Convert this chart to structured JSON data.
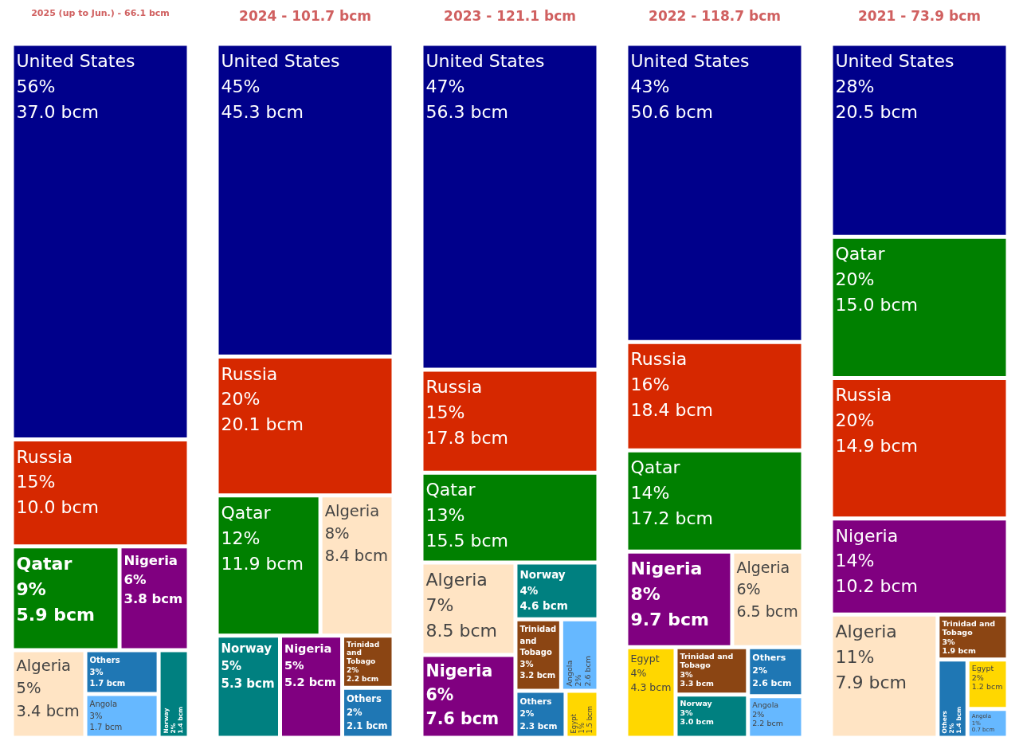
{
  "chart_data": [
    {
      "type": "other",
      "title": "2025 (up to Jun.) - 66.1 bcm",
      "categories": [
        "United States",
        "Russia",
        "Qatar",
        "Nigeria",
        "Algeria",
        "Others",
        "Angola",
        "Norway"
      ],
      "values": [
        37.0,
        10.0,
        5.9,
        3.8,
        3.4,
        1.7,
        1.7,
        1.4
      ],
      "value_labels": [
        "56%\n37.0 bcm",
        "15%\n10.0 bcm",
        "9%\n5.9 bcm",
        "6%\n3.8 bcm",
        "5%\n3.4 bcm",
        "3%\n1.7 bcm",
        "3%\n1.7 bcm",
        "2%\n1.4 bcm"
      ],
      "colors": [
        "#00008b",
        "#d62800",
        "#008000",
        "#800080",
        "#ffe4c4",
        "#1f77b4",
        "#66b8ff",
        "#008080"
      ]
    },
    {
      "type": "other",
      "title": "2024 - 101.7 bcm",
      "categories": [
        "United States",
        "Russia",
        "Qatar",
        "Algeria",
        "Norway",
        "Nigeria",
        "Trinidad and Tobago",
        "Others"
      ],
      "values": [
        45.3,
        20.1,
        11.9,
        8.4,
        5.3,
        5.2,
        2.2,
        2.1
      ],
      "value_labels": [
        "45%\n45.3 bcm",
        "20%\n20.1 bcm",
        "12%\n11.9 bcm",
        "8%\n8.4 bcm",
        "5%\n5.3 bcm",
        "5%\n5.2 bcm",
        "2%\n2.2 bcm",
        "2%\n2.1 bcm"
      ],
      "colors": [
        "#00008b",
        "#d62800",
        "#008000",
        "#ffe4c4",
        "#008080",
        "#800080",
        "#8b4513",
        "#1f77b4"
      ]
    },
    {
      "type": "other",
      "title": "2023 - 121.1 bcm",
      "categories": [
        "United States",
        "Russia",
        "Qatar",
        "Algeria",
        "Nigeria",
        "Norway",
        "Trinidad and Tobago",
        "Angola",
        "Others",
        "Egypt"
      ],
      "values": [
        56.3,
        17.8,
        15.5,
        8.5,
        7.6,
        4.6,
        3.2,
        2.6,
        2.3,
        1.5
      ],
      "value_labels": [
        "47%\n56.3 bcm",
        "15%\n17.8 bcm",
        "13%\n15.5 bcm",
        "7%\n8.5 bcm",
        "6%\n7.6 bcm",
        "4%\n4.6 bcm",
        "3%\n3.2 bcm",
        "2%\n2.6 bcm",
        "2%\n2.3 bcm",
        "1%\n1.5 bcm"
      ],
      "colors": [
        "#00008b",
        "#d62800",
        "#008000",
        "#ffe4c4",
        "#800080",
        "#008080",
        "#8b4513",
        "#66b8ff",
        "#1f77b4",
        "#ffd700"
      ]
    },
    {
      "type": "other",
      "title": "2022 - 118.7 bcm",
      "categories": [
        "United States",
        "Russia",
        "Qatar",
        "Nigeria",
        "Algeria",
        "Egypt",
        "Trinidad and Tobago",
        "Norway",
        "Others",
        "Angola"
      ],
      "values": [
        50.6,
        18.4,
        17.2,
        9.7,
        6.5,
        4.3,
        3.3,
        3.0,
        2.6,
        2.2
      ],
      "value_labels": [
        "43%\n50.6 bcm",
        "16%\n18.4 bcm",
        "14%\n17.2 bcm",
        "8%\n9.7 bcm",
        "6%\n6.5 bcm",
        "4%\n4.3 bcm",
        "3%\n3.3 bcm",
        "3%\n3.0 bcm",
        "2%\n2.6 bcm",
        "2%\n2.2 bcm"
      ],
      "colors": [
        "#00008b",
        "#d62800",
        "#008000",
        "#800080",
        "#ffe4c4",
        "#ffd700",
        "#8b4513",
        "#008080",
        "#1f77b4",
        "#66b8ff"
      ]
    },
    {
      "type": "other",
      "title": "2021 - 73.9 bcm",
      "categories": [
        "United States",
        "Qatar",
        "Russia",
        "Nigeria",
        "Algeria",
        "Trinidad and Tobago",
        "Others",
        "Egypt",
        "Angola"
      ],
      "values": [
        20.5,
        15.0,
        14.9,
        10.2,
        7.9,
        1.9,
        1.4,
        1.2,
        0.7
      ],
      "value_labels": [
        "28%\n20.5 bcm",
        "20%\n15.0 bcm",
        "20%\n14.9 bcm",
        "14%\n10.2 bcm",
        "11%\n7.9 bcm",
        "3%\n1.9 bcm",
        "2%\n1.4 bcm",
        "2%\n1.2 bcm",
        "1%\n0.7 bcm"
      ],
      "colors": [
        "#00008b",
        "#008000",
        "#d62800",
        "#800080",
        "#ffe4c4",
        "#8b4513",
        "#1f77b4",
        "#ffd700",
        "#66b8ff"
      ]
    }
  ]
}
